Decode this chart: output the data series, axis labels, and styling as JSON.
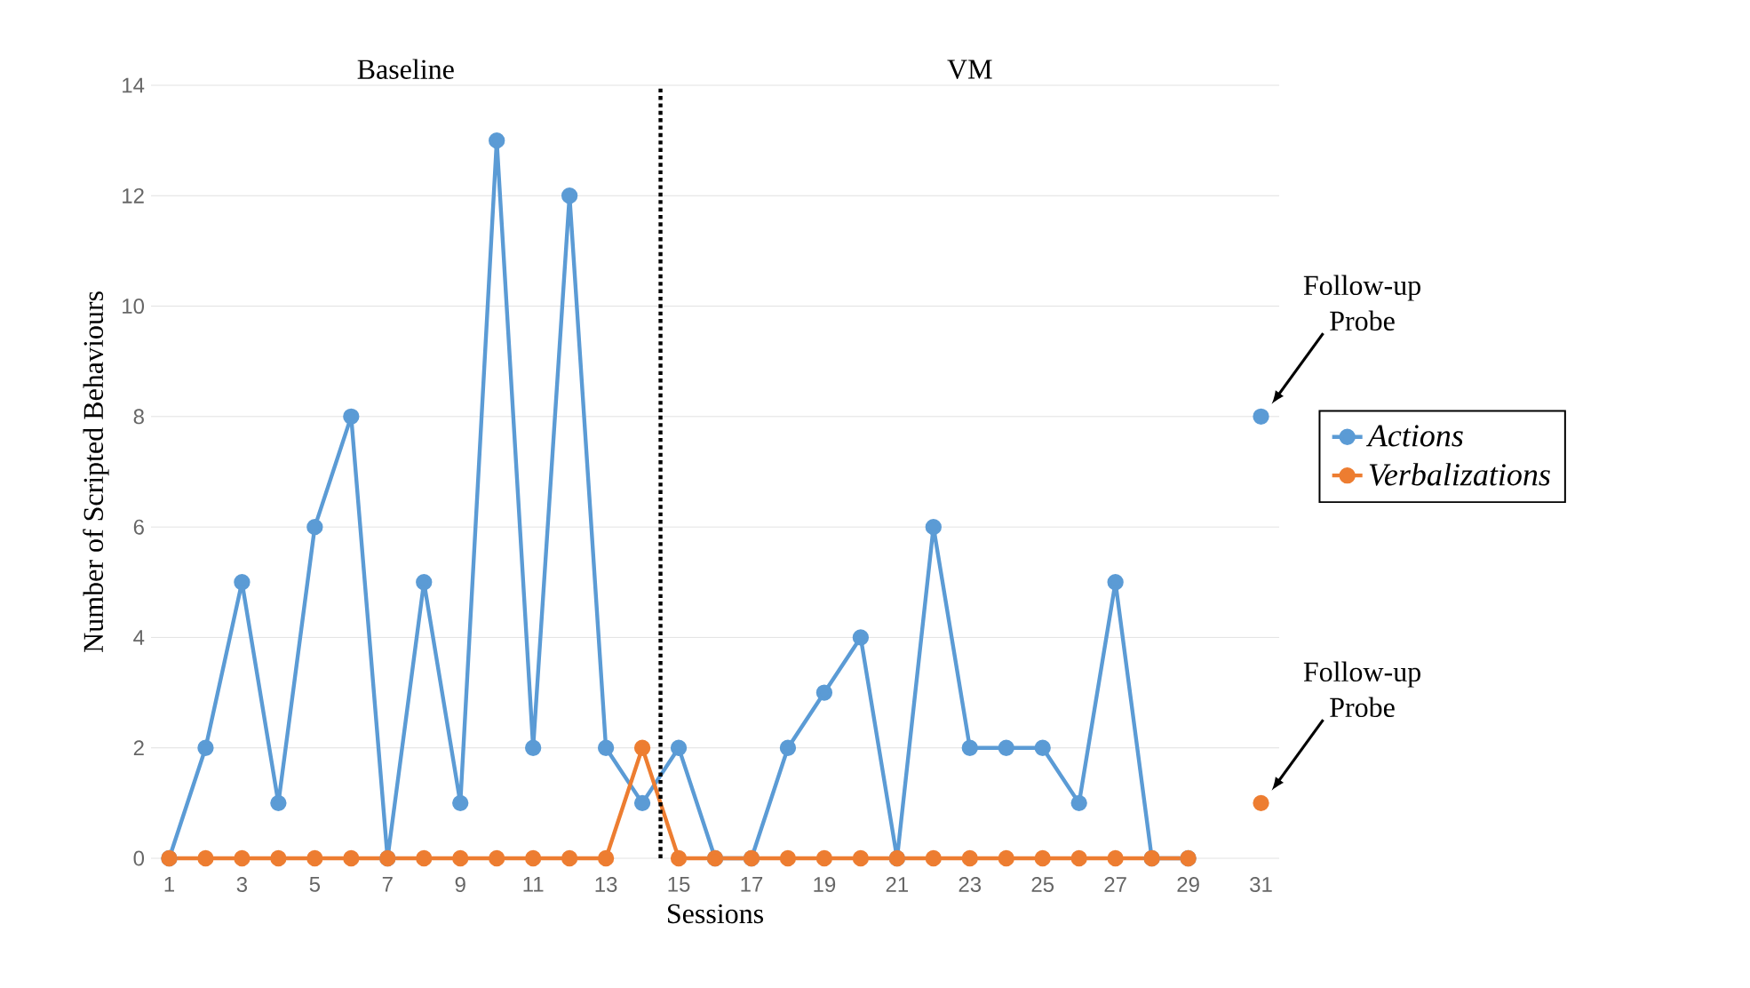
{
  "chart_data": {
    "type": "line",
    "xlabel": "Sessions",
    "ylabel": "Number of Scripted Behaviours",
    "x": [
      1,
      2,
      3,
      4,
      5,
      6,
      7,
      8,
      9,
      10,
      11,
      12,
      13,
      14,
      15,
      16,
      17,
      18,
      19,
      20,
      21,
      22,
      23,
      24,
      25,
      26,
      27,
      28,
      29,
      30,
      31
    ],
    "series": [
      {
        "name": "Actions",
        "color": "#5b9bd5",
        "values": [
          0,
          2,
          5,
          1,
          6,
          8,
          0,
          5,
          1,
          13,
          2,
          12,
          2,
          1,
          2,
          0,
          0,
          2,
          3,
          4,
          0,
          6,
          2,
          2,
          2,
          1,
          5,
          0,
          0,
          null,
          8
        ]
      },
      {
        "name": "Verbalizations",
        "color": "#ed7d31",
        "values": [
          0,
          0,
          0,
          0,
          0,
          0,
          0,
          0,
          0,
          0,
          0,
          0,
          0,
          2,
          0,
          0,
          0,
          0,
          0,
          0,
          0,
          0,
          0,
          0,
          0,
          0,
          0,
          0,
          0,
          null,
          1
        ]
      }
    ],
    "xlim": [
      0.5,
      31.5
    ],
    "ylim": [
      0,
      14
    ],
    "xticks": [
      1,
      3,
      5,
      7,
      9,
      11,
      13,
      15,
      17,
      19,
      21,
      23,
      25,
      27,
      29,
      31
    ],
    "yticks": [
      0,
      2,
      4,
      6,
      8,
      10,
      12,
      14
    ],
    "grid": "y",
    "legend": "right",
    "marker": "circle",
    "line_style": "solid",
    "ref_lines": [
      {
        "axis": "x",
        "value": 14.5,
        "color": "#000000",
        "line_style": "dotted"
      }
    ],
    "annotations": [
      "Baseline",
      "VM",
      "Follow-up Probe",
      "Follow-up Probe"
    ]
  }
}
